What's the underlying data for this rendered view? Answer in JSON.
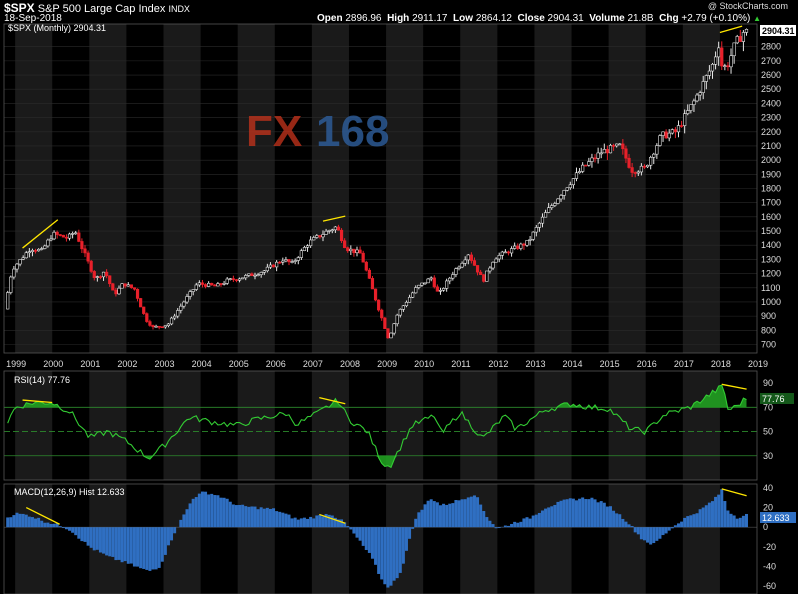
{
  "header": {
    "symbol": "$SPX",
    "name": "S&P 500 Large Cap Index",
    "exchange": "INDX",
    "date": "18-Sep-2018",
    "watermark": "@ StockCharts.com",
    "open_label": "Open",
    "open": "2896.96",
    "high_label": "High",
    "high": "2911.17",
    "low_label": "Low",
    "low": "2864.12",
    "close_label": "Close",
    "close": "2904.31",
    "volume_label": "Volume",
    "volume": "21.8B",
    "chg_label": "Chg",
    "chg": "+2.79 (+0.10%)"
  },
  "logo": {
    "text_a": "FX",
    "text_b": "168",
    "color_a": "#c8341c",
    "color_b": "#2e5f9e"
  },
  "colors": {
    "up": "#e8e8e8",
    "down": "#e8202a",
    "rsi": "#33cc33",
    "macd": "#2f6fc2",
    "trend": "#ffe600",
    "bg": "#000000"
  },
  "chart_data": [
    {
      "type": "candlestick",
      "legend": "$SPX (Monthly) 2904.31",
      "last_value": "2904.31",
      "x_ticks": [
        "1999",
        "2000",
        "2001",
        "2002",
        "2003",
        "2004",
        "2005",
        "2006",
        "2007",
        "2008",
        "2009",
        "2010",
        "2011",
        "2012",
        "2013",
        "2014",
        "2015",
        "2016",
        "2017",
        "2018",
        "2019"
      ],
      "y_ticks": [
        700,
        800,
        900,
        1000,
        1100,
        1200,
        1300,
        1400,
        1500,
        1600,
        1700,
        1800,
        1900,
        2000,
        2100,
        2200,
        2300,
        2400,
        2500,
        2600,
        2700,
        2800
      ],
      "ylim": [
        640,
        2960
      ],
      "x_start": 1998.8,
      "x_end": 2018.72,
      "keyframes": [
        [
          1998.8,
          950
        ],
        [
          1999.0,
          1230
        ],
        [
          1999.5,
          1380
        ],
        [
          1999.8,
          1360
        ],
        [
          2000.1,
          1480
        ],
        [
          2000.5,
          1450
        ],
        [
          2000.7,
          1500
        ],
        [
          2000.95,
          1340
        ],
        [
          2001.25,
          1160
        ],
        [
          2001.5,
          1220
        ],
        [
          2001.75,
          1050
        ],
        [
          2002.0,
          1130
        ],
        [
          2002.3,
          1090
        ],
        [
          2002.6,
          880
        ],
        [
          2002.8,
          820
        ],
        [
          2003.2,
          840
        ],
        [
          2003.6,
          990
        ],
        [
          2004.0,
          1130
        ],
        [
          2004.5,
          1110
        ],
        [
          2004.8,
          1150
        ],
        [
          2005.3,
          1180
        ],
        [
          2005.8,
          1220
        ],
        [
          2006.3,
          1300
        ],
        [
          2006.55,
          1270
        ],
        [
          2007.0,
          1420
        ],
        [
          2007.5,
          1500
        ],
        [
          2007.75,
          1530
        ],
        [
          2008.0,
          1380
        ],
        [
          2008.4,
          1340
        ],
        [
          2008.7,
          1100
        ],
        [
          2008.95,
          900
        ],
        [
          2009.15,
          740
        ],
        [
          2009.4,
          920
        ],
        [
          2009.9,
          1100
        ],
        [
          2010.3,
          1170
        ],
        [
          2010.5,
          1050
        ],
        [
          2010.9,
          1210
        ],
        [
          2011.3,
          1340
        ],
        [
          2011.7,
          1150
        ],
        [
          2012.0,
          1310
        ],
        [
          2012.4,
          1360
        ],
        [
          2012.9,
          1420
        ],
        [
          2013.4,
          1630
        ],
        [
          2013.9,
          1800
        ],
        [
          2014.4,
          1950
        ],
        [
          2014.9,
          2060
        ],
        [
          2015.4,
          2100
        ],
        [
          2015.7,
          1930
        ],
        [
          2016.05,
          1940
        ],
        [
          2016.5,
          2170
        ],
        [
          2016.9,
          2200
        ],
        [
          2017.4,
          2420
        ],
        [
          2017.9,
          2680
        ],
        [
          2018.05,
          2820
        ],
        [
          2018.15,
          2640
        ],
        [
          2018.3,
          2680
        ],
        [
          2018.5,
          2820
        ],
        [
          2018.72,
          2904
        ]
      ],
      "trendlines": [
        [
          [
            1999.2,
            1380
          ],
          [
            2000.15,
            1580
          ]
        ],
        [
          [
            2007.3,
            1570
          ],
          [
            2007.9,
            1605
          ]
        ],
        [
          [
            2018.0,
            2900
          ],
          [
            2018.6,
            2945
          ]
        ]
      ]
    },
    {
      "type": "line",
      "legend": "RSI(14) 77.76",
      "last_value": "77.76",
      "y_ticks": [
        30,
        50,
        70,
        90
      ],
      "ylim": [
        10,
        100
      ],
      "reference_lines": [
        70,
        50,
        30
      ],
      "keyframes": [
        [
          1998.8,
          58
        ],
        [
          1999.0,
          70
        ],
        [
          1999.5,
          74
        ],
        [
          2000.0,
          74
        ],
        [
          2000.5,
          66
        ],
        [
          2001.0,
          45
        ],
        [
          2001.5,
          50
        ],
        [
          2002.0,
          42
        ],
        [
          2002.6,
          28
        ],
        [
          2003.0,
          38
        ],
        [
          2003.7,
          62
        ],
        [
          2004.3,
          58
        ],
        [
          2005.0,
          55
        ],
        [
          2005.5,
          60
        ],
        [
          2006.3,
          65
        ],
        [
          2006.6,
          56
        ],
        [
          2007.2,
          66
        ],
        [
          2007.7,
          76
        ],
        [
          2008.0,
          60
        ],
        [
          2008.5,
          50
        ],
        [
          2008.9,
          24
        ],
        [
          2009.1,
          21
        ],
        [
          2009.7,
          55
        ],
        [
          2010.3,
          63
        ],
        [
          2010.5,
          48
        ],
        [
          2011.0,
          66
        ],
        [
          2011.6,
          44
        ],
        [
          2012.2,
          63
        ],
        [
          2012.5,
          52
        ],
        [
          2013.3,
          68
        ],
        [
          2014.0,
          73
        ],
        [
          2014.5,
          70
        ],
        [
          2015.0,
          69
        ],
        [
          2015.6,
          52
        ],
        [
          2016.0,
          50
        ],
        [
          2016.5,
          64
        ],
        [
          2017.2,
          70
        ],
        [
          2017.9,
          84
        ],
        [
          2018.1,
          88
        ],
        [
          2018.2,
          68
        ],
        [
          2018.4,
          70
        ],
        [
          2018.72,
          77.76
        ]
      ],
      "trendlines": [
        [
          [
            1999.2,
            76
          ],
          [
            2000.0,
            74
          ]
        ],
        [
          [
            2007.2,
            78
          ],
          [
            2007.9,
            73
          ]
        ],
        [
          [
            2018.05,
            89
          ],
          [
            2018.72,
            85
          ]
        ]
      ]
    },
    {
      "type": "bar",
      "legend": "MACD(12,26,9) Hist 12.633",
      "last_value": "12.633",
      "y_ticks": [
        40,
        20,
        0,
        -20,
        -40,
        -60
      ],
      "ylim": [
        -68,
        44
      ],
      "keyframes": [
        [
          1998.8,
          10
        ],
        [
          1999.0,
          14
        ],
        [
          1999.4,
          12
        ],
        [
          1999.8,
          6
        ],
        [
          2000.2,
          2
        ],
        [
          2000.5,
          -3
        ],
        [
          2001.0,
          -20
        ],
        [
          2001.5,
          -30
        ],
        [
          2001.9,
          -35
        ],
        [
          2002.6,
          -45
        ],
        [
          2002.9,
          -40
        ],
        [
          2003.3,
          -5
        ],
        [
          2003.8,
          30
        ],
        [
          2004.1,
          36
        ],
        [
          2004.5,
          32
        ],
        [
          2005.0,
          22
        ],
        [
          2005.5,
          20
        ],
        [
          2006.0,
          18
        ],
        [
          2006.6,
          8
        ],
        [
          2007.0,
          10
        ],
        [
          2007.5,
          14
        ],
        [
          2007.9,
          4
        ],
        [
          2008.2,
          -10
        ],
        [
          2008.6,
          -30
        ],
        [
          2008.9,
          -55
        ],
        [
          2009.1,
          -62
        ],
        [
          2009.4,
          -45
        ],
        [
          2009.8,
          10
        ],
        [
          2010.2,
          30
        ],
        [
          2010.5,
          22
        ],
        [
          2011.0,
          28
        ],
        [
          2011.4,
          34
        ],
        [
          2011.7,
          12
        ],
        [
          2012.0,
          -2
        ],
        [
          2012.4,
          4
        ],
        [
          2012.9,
          10
        ],
        [
          2013.3,
          20
        ],
        [
          2013.9,
          28
        ],
        [
          2014.5,
          30
        ],
        [
          2015.0,
          22
        ],
        [
          2015.5,
          6
        ],
        [
          2015.9,
          -12
        ],
        [
          2016.2,
          -18
        ],
        [
          2016.6,
          -4
        ],
        [
          2017.0,
          8
        ],
        [
          2017.5,
          18
        ],
        [
          2017.9,
          30
        ],
        [
          2018.05,
          38
        ],
        [
          2018.2,
          18
        ],
        [
          2018.45,
          10
        ],
        [
          2018.72,
          12.633
        ]
      ],
      "trendlines": [
        [
          [
            1999.3,
            20
          ],
          [
            2000.2,
            3
          ]
        ],
        [
          [
            2007.2,
            13
          ],
          [
            2007.9,
            4
          ]
        ],
        [
          [
            2018.05,
            39
          ],
          [
            2018.72,
            32
          ]
        ]
      ]
    }
  ]
}
